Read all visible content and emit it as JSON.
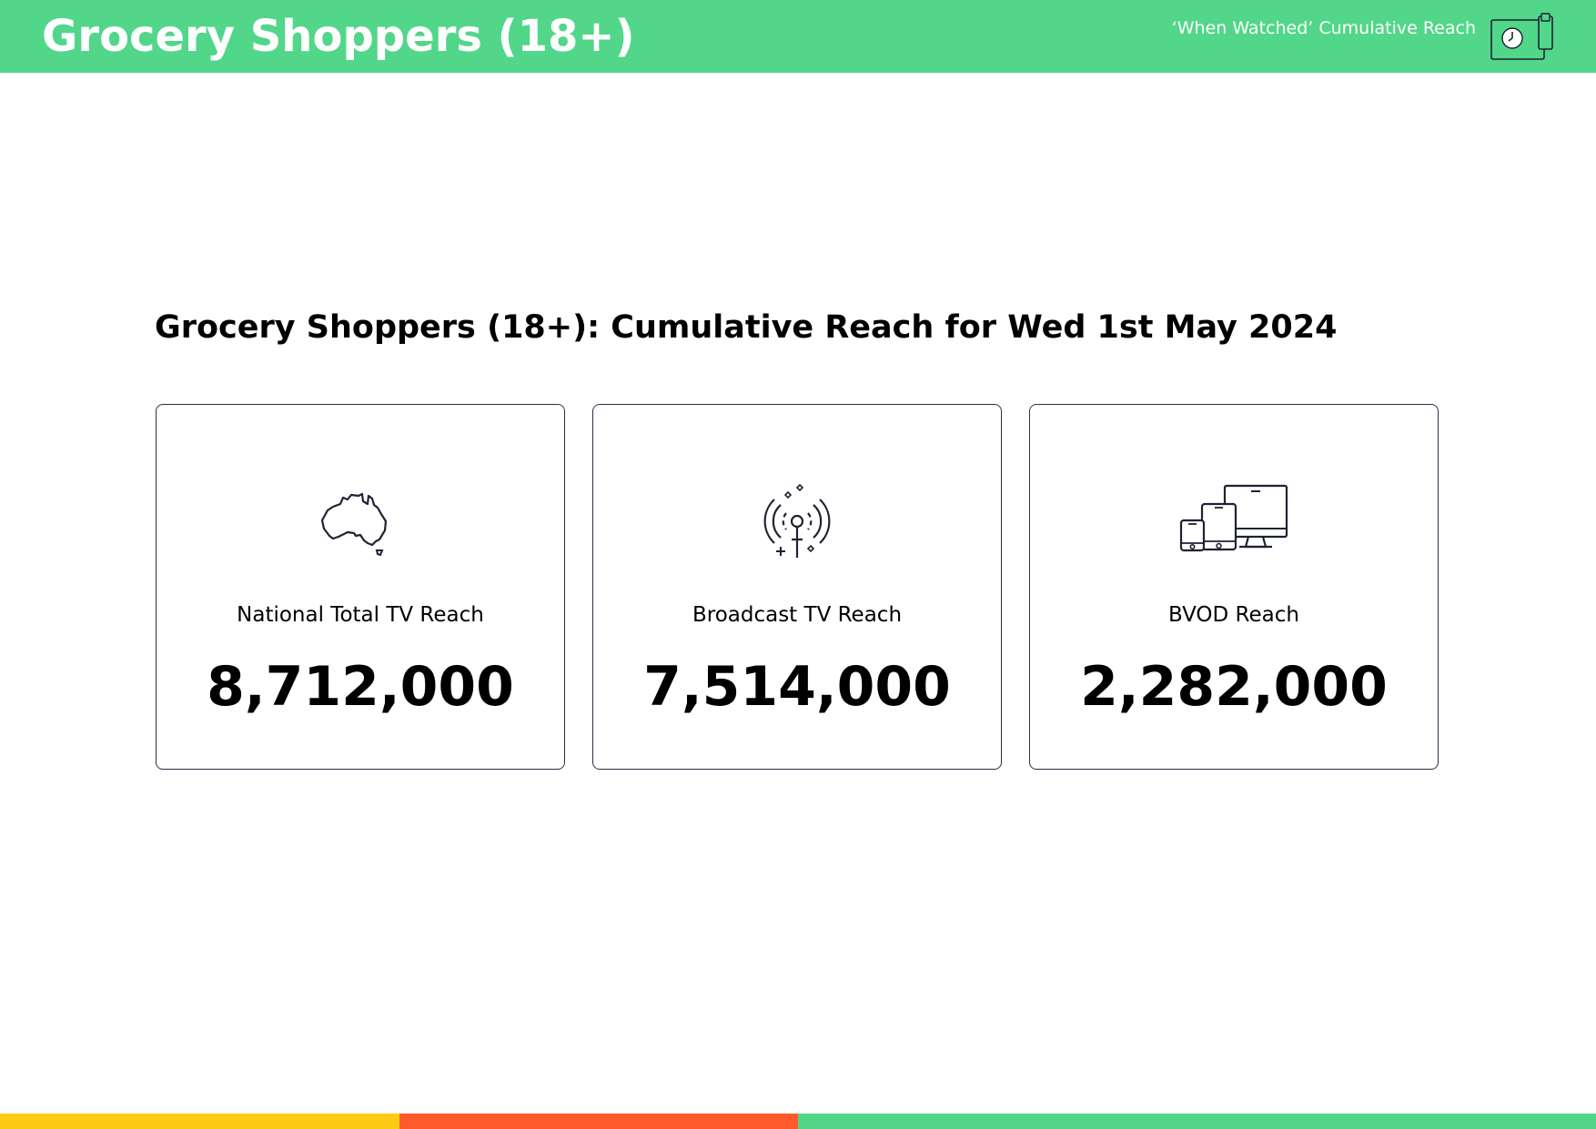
{
  "header": {
    "title": "Grocery Shoppers (18+)",
    "subtitle": "‘When Watched’ Cumulative Reach",
    "icon": "clock-devices-icon"
  },
  "report": {
    "title": "Grocery Shoppers (18+): Cumulative Reach for Wed 1st May 2024"
  },
  "cards": [
    {
      "label": "National Total TV Reach",
      "value": "8,712,000",
      "icon": "australia-map-icon"
    },
    {
      "label": "Broadcast TV Reach",
      "value": "7,514,000",
      "icon": "broadcast-antenna-icon"
    },
    {
      "label": "BVOD Reach",
      "value": "2,282,000",
      "icon": "devices-icon"
    }
  ],
  "colors": {
    "header_green": "#52d68a",
    "card_border": "#2a2f45",
    "footer_bars": [
      "#fdcb13",
      "#ff5a2c",
      "#52d68a"
    ]
  }
}
